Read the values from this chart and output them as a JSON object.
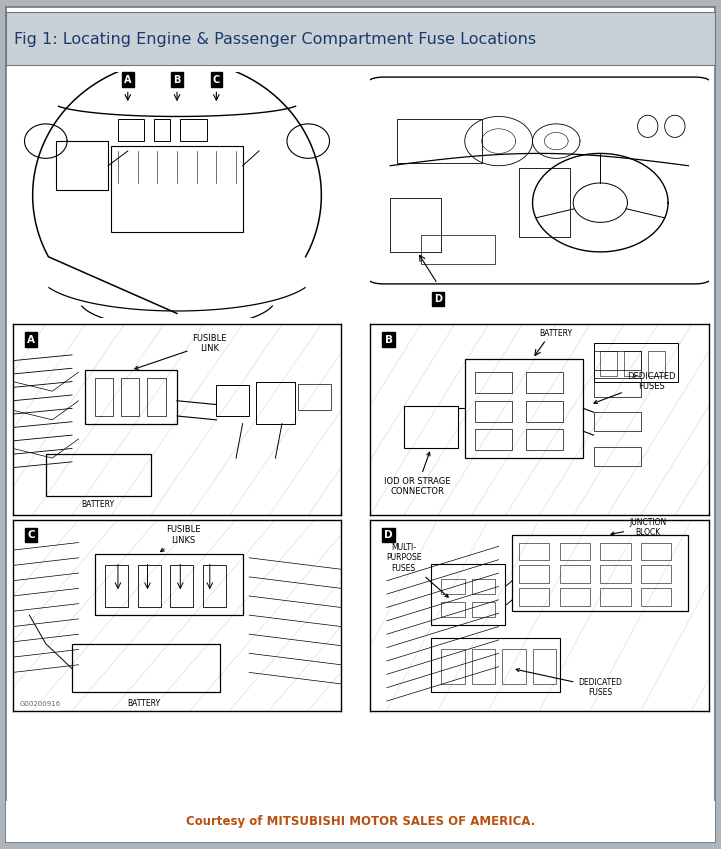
{
  "title": "Fig 1: Locating Engine & Passenger Compartment Fuse Locations",
  "title_color": "#1a3a6b",
  "title_bg": "#c8d0d8",
  "footer_text": "Courtesy of MITSUBISHI MOTOR SALES OF AMERICA.",
  "footer_color": "#b85010",
  "outer_border_color": "#777777",
  "outer_bg": "#ffffff",
  "lc": "#000000",
  "page_bg": "#adb5bd",
  "watermark": "G00200916",
  "title_fontsize": 11.5,
  "footer_fontsize": 8.5
}
